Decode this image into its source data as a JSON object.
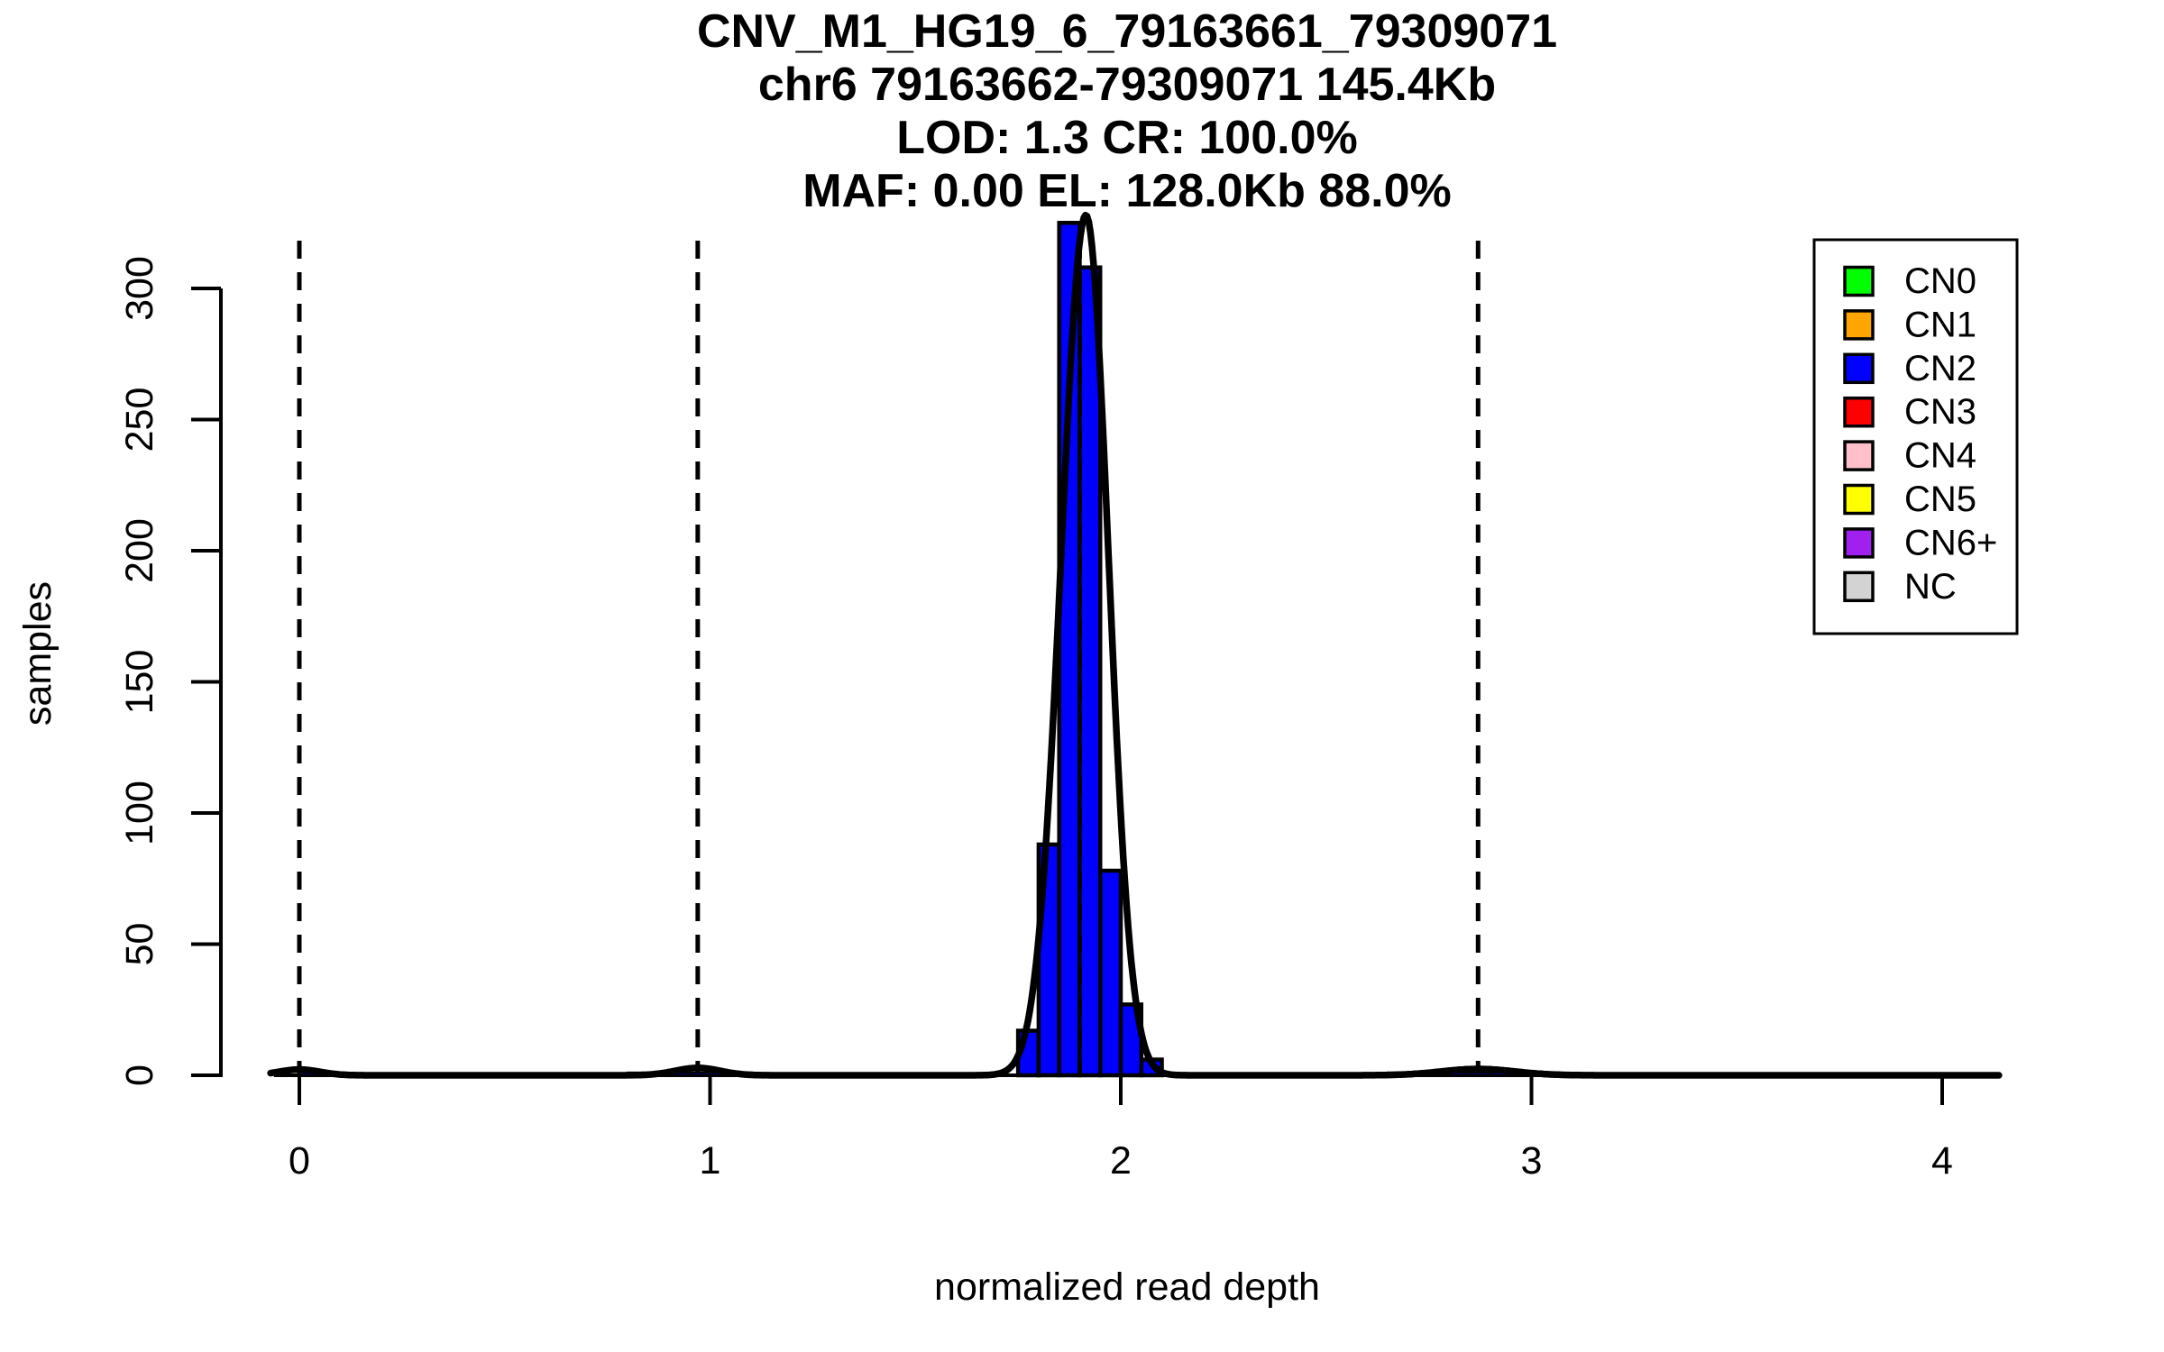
{
  "title": {
    "line1": "CNV_M1_HG19_6_79163661_79309071",
    "line2": "chr6 79163662-79309071 145.4Kb",
    "line3": "LOD: 1.3 CR: 100.0%",
    "line4": "MAF: 0.00 EL: 128.0Kb 88.0%"
  },
  "axes": {
    "x_label": "normalized read depth",
    "y_label": "samples"
  },
  "chart_data": {
    "type": "bar",
    "subtype": "histogram-with-density",
    "title": "CNV_M1_HG19_6_79163661_79309071 / chr6 79163662-79309071 145.4Kb / LOD: 1.3 CR: 100.0% / MAF: 0.00 EL: 128.0Kb 88.0%",
    "xlabel": "normalized read depth",
    "ylabel": "samples",
    "x_ticks": [
      0,
      1,
      2,
      3,
      4
    ],
    "y_ticks": [
      0,
      50,
      100,
      150,
      200,
      250,
      300
    ],
    "xlim": [
      -0.07,
      4.14
    ],
    "ylim": [
      0,
      330
    ],
    "grid": false,
    "bin_width": 0.05,
    "bar_color": "#0000FF",
    "bar_border_color": "#000000",
    "main_cluster": {
      "label": "CN2",
      "bin_start": 1.75,
      "bin_edges": [
        1.75,
        1.8,
        1.85,
        1.9,
        1.95,
        2.0,
        2.05,
        2.1
      ],
      "counts": [
        17,
        88,
        325,
        308,
        78,
        27,
        6
      ]
    },
    "minor_bins": [
      {
        "start": 0.0,
        "count": 1
      },
      {
        "start": 0.8,
        "count": 1
      },
      {
        "start": 0.85,
        "count": 1
      },
      {
        "start": 0.9,
        "count": 1
      },
      {
        "start": 0.95,
        "count": 1
      },
      {
        "start": 1.0,
        "count": 1
      },
      {
        "start": 1.05,
        "count": 1
      },
      {
        "start": 2.65,
        "count": 1
      },
      {
        "start": 2.7,
        "count": 1
      },
      {
        "start": 2.75,
        "count": 1
      },
      {
        "start": 2.8,
        "count": 1
      },
      {
        "start": 2.85,
        "count": 1
      },
      {
        "start": 2.9,
        "count": 1
      },
      {
        "start": 2.95,
        "count": 1
      },
      {
        "start": 3.0,
        "count": 1
      }
    ],
    "dashed_lines_x": [
      0,
      0.97,
      1.9,
      2.87
    ],
    "density_curve": {
      "mean": 1.915,
      "peak": 328,
      "sd_left": 0.06,
      "sd_right": 0.055,
      "bumps": [
        {
          "mean": 0.0,
          "peak": 2.2,
          "sd": 0.05
        },
        {
          "mean": 0.97,
          "peak": 2.8,
          "sd": 0.055
        },
        {
          "mean": 2.87,
          "peak": 2.4,
          "sd": 0.09
        }
      ]
    },
    "legend": {
      "position": "top-right",
      "items": [
        {
          "label": "CN0",
          "color": "#00FF00"
        },
        {
          "label": "CN1",
          "color": "#FFA500"
        },
        {
          "label": "CN2",
          "color": "#0000FF"
        },
        {
          "label": "CN3",
          "color": "#FF0000"
        },
        {
          "label": "CN4",
          "color": "#FFC0CB"
        },
        {
          "label": "CN5",
          "color": "#FFFF00"
        },
        {
          "label": "CN6+",
          "color": "#A020F0"
        },
        {
          "label": "NC",
          "color": "#D3D3D3"
        }
      ]
    },
    "colors": {
      "axis": "#000000",
      "dashed_line": "#000000",
      "density_curve": "#000000",
      "background": "#FFFFFF"
    }
  }
}
